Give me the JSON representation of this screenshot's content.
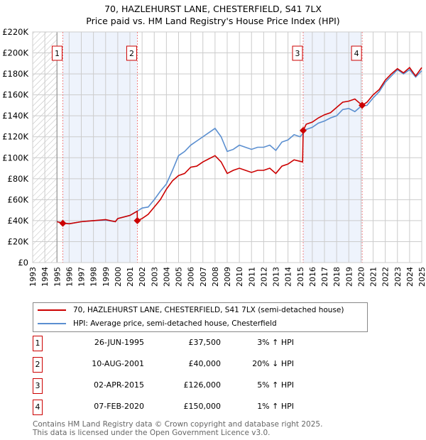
{
  "chart_data": {
    "type": "line",
    "title": "70, HAZLEHURST LANE, CHESTERFIELD, S41 7LX",
    "subtitle": "Price paid vs. HM Land Registry's House Price Index (HPI)",
    "xlim": [
      1993,
      2025
    ],
    "ylim": [
      0,
      220000
    ],
    "yticks": [
      {
        "v": 0,
        "l": "£0"
      },
      {
        "v": 20000,
        "l": "£20K"
      },
      {
        "v": 40000,
        "l": "£40K"
      },
      {
        "v": 60000,
        "l": "£60K"
      },
      {
        "v": 80000,
        "l": "£80K"
      },
      {
        "v": 100000,
        "l": "£100K"
      },
      {
        "v": 120000,
        "l": "£120K"
      },
      {
        "v": 140000,
        "l": "£140K"
      },
      {
        "v": 160000,
        "l": "£160K"
      },
      {
        "v": 180000,
        "l": "£180K"
      },
      {
        "v": 200000,
        "l": "£200K"
      },
      {
        "v": 220000,
        "l": "£220K"
      }
    ],
    "xticks": [
      "1993",
      "1994",
      "1995",
      "1996",
      "1997",
      "1998",
      "1999",
      "2000",
      "2001",
      "2002",
      "2003",
      "2004",
      "2005",
      "2006",
      "2007",
      "2008",
      "2009",
      "2010",
      "2011",
      "2012",
      "2013",
      "2014",
      "2015",
      "2016",
      "2017",
      "2018",
      "2019",
      "2020",
      "2021",
      "2022",
      "2023",
      "2024",
      "2025"
    ],
    "grid": true,
    "colors": {
      "property": "#cc0000",
      "hpi": "#5b8fd0",
      "shade": "#eef3fc"
    },
    "shaded": [
      [
        1995.48,
        2001.61
      ],
      [
        2015.25,
        2020.1
      ]
    ],
    "hatched": [
      1993,
      1995
    ],
    "series": [
      {
        "name": "70, HAZLEHURST LANE, CHESTERFIELD, S41 7LX (semi-detached house)",
        "key": "property",
        "x": [
          1995,
          1995.48,
          1996,
          1997,
          1998,
          1999,
          1999.8,
          2000,
          2001,
          2001.6,
          2001.61,
          2002,
          2002.5,
          2003,
          2003.5,
          2004,
          2004.5,
          2005,
          2005.5,
          2006,
          2006.5,
          2007,
          2007.5,
          2008,
          2008.5,
          2009,
          2009.5,
          2010,
          2010.5,
          2011,
          2011.5,
          2012,
          2012.5,
          2013,
          2013.5,
          2014,
          2014.5,
          2015.2,
          2015.25,
          2015.5,
          2016,
          2016.5,
          2017,
          2017.5,
          2018,
          2018.5,
          2019,
          2019.5,
          2020.1,
          2020.5,
          2021,
          2021.5,
          2022,
          2022.5,
          2023,
          2023.5,
          2024,
          2024.5,
          2025
        ],
        "y": [
          39000,
          37500,
          37000,
          39000,
          40000,
          41000,
          39000,
          42000,
          45000,
          49000,
          40000,
          42000,
          46000,
          53000,
          60000,
          70000,
          78000,
          83000,
          85000,
          91000,
          92000,
          96000,
          99000,
          102000,
          96000,
          85000,
          88000,
          90000,
          88000,
          86000,
          88000,
          88000,
          90000,
          85000,
          92000,
          94000,
          98000,
          96000,
          126000,
          132000,
          134000,
          138000,
          141000,
          143000,
          148000,
          153000,
          154000,
          156000,
          150000,
          153000,
          160000,
          165000,
          174000,
          180000,
          185000,
          181000,
          186000,
          178000,
          186000
        ]
      },
      {
        "name": "HPI: Average price, semi-detached house, Chesterfield",
        "key": "hpi",
        "x": [
          1995,
          1996,
          1997,
          1998,
          1999,
          1999.8,
          2000,
          2001,
          2001.6,
          2002,
          2002.5,
          2003,
          2003.5,
          2004,
          2004.5,
          2005,
          2005.5,
          2006,
          2006.5,
          2007,
          2007.5,
          2008,
          2008.5,
          2009,
          2009.5,
          2010,
          2010.5,
          2011,
          2011.5,
          2012,
          2012.5,
          2013,
          2013.5,
          2014,
          2014.5,
          2015,
          2015.5,
          2016,
          2016.5,
          2017,
          2017.5,
          2018,
          2018.5,
          2019,
          2019.5,
          2020,
          2020.5,
          2021,
          2021.5,
          2022,
          2022.5,
          2023,
          2023.5,
          2024,
          2024.5,
          2025
        ],
        "y": [
          39000,
          37000,
          39000,
          40000,
          40500,
          39000,
          42000,
          45000,
          49000,
          52000,
          53000,
          60000,
          68000,
          75000,
          88000,
          102000,
          106000,
          112000,
          116000,
          120000,
          124000,
          128000,
          120000,
          106000,
          108000,
          112000,
          110000,
          108000,
          110000,
          110000,
          112000,
          107000,
          115000,
          117000,
          122000,
          120000,
          127000,
          129000,
          133000,
          135000,
          138000,
          140000,
          146000,
          147000,
          144000,
          149000,
          150000,
          157000,
          163000,
          172000,
          178000,
          184000,
          180000,
          184000,
          177000,
          183000
        ]
      }
    ],
    "sales": [
      {
        "n": "1",
        "x": 1995.48,
        "y": 37500,
        "date": "26-JUN-1995",
        "price": "£37,500",
        "hpi": "3% ↑ HPI"
      },
      {
        "n": "2",
        "x": 2001.61,
        "y": 40000,
        "date": "10-AUG-2001",
        "price": "£40,000",
        "hpi": "20% ↓ HPI"
      },
      {
        "n": "3",
        "x": 2015.25,
        "y": 126000,
        "date": "02-APR-2015",
        "price": "£126,000",
        "hpi": "5% ↑ HPI"
      },
      {
        "n": "4",
        "x": 2020.1,
        "y": 150000,
        "date": "07-FEB-2020",
        "price": "£150,000",
        "hpi": "1% ↑ HPI"
      }
    ],
    "legend_position": "below"
  },
  "footer": {
    "line1": "Contains HM Land Registry data © Crown copyright and database right 2025.",
    "line2": "This data is licensed under the Open Government Licence v3.0."
  }
}
